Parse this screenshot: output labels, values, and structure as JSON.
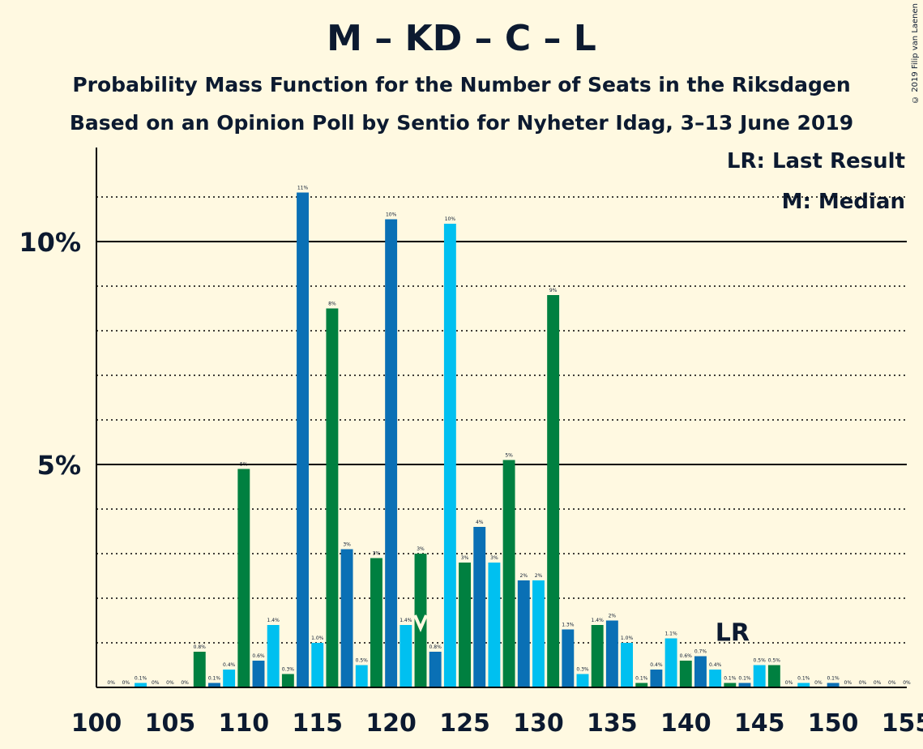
{
  "title": "M – KD – C – L",
  "subtitle1": "Probability Mass Function for the Number of Seats in the Riksdagen",
  "subtitle2": "Based on an Opinion Poll by Sentio for Nyheter Idag, 3–13 June 2019",
  "copyright": "© 2019 Filip van Laenen",
  "legend": {
    "last_result": "LR: Last Result",
    "median": "M: Median"
  },
  "colors": {
    "background": "#fff9e1",
    "bar_palette": [
      "#0a70b5",
      "#00c0f0",
      "#008040",
      "#0a70b5",
      "#00c0f0",
      "#008040"
    ],
    "text": "#0c1a30"
  },
  "chart_data": {
    "type": "bar",
    "xlabel": "",
    "ylabel": "",
    "xlim": [
      100,
      155
    ],
    "ylim": [
      0,
      12
    ],
    "x_ticks": [
      "100",
      "105",
      "110",
      "115",
      "120",
      "125",
      "130",
      "135",
      "140",
      "145",
      "150",
      "155"
    ],
    "y_ticks": [
      "5%",
      "10%"
    ],
    "grid": "dotted every 1%, solid at 5% and 10%",
    "median_seat": 122,
    "last_result_seat": 143,
    "last_result_label": "LR",
    "seats": [
      101,
      102,
      103,
      104,
      105,
      106,
      107,
      108,
      109,
      110,
      111,
      112,
      113,
      114,
      115,
      116,
      117,
      118,
      119,
      120,
      121,
      122,
      123,
      124,
      125,
      126,
      127,
      128,
      129,
      130,
      131,
      132,
      133,
      134,
      135,
      136,
      137,
      138,
      139,
      140,
      141,
      142,
      143,
      144,
      145,
      146,
      147,
      148,
      149,
      150,
      151,
      152,
      153,
      154,
      155
    ],
    "values": [
      0.0,
      0.0,
      0.1,
      0.0,
      0.0,
      0.0,
      0.8,
      0.1,
      0.4,
      4.9,
      0.6,
      1.4,
      0.3,
      11.1,
      1.0,
      8.5,
      3.1,
      0.5,
      2.9,
      10.5,
      1.4,
      3.0,
      0.8,
      10.4,
      2.8,
      3.6,
      2.8,
      5.1,
      2.4,
      2.4,
      8.8,
      1.3,
      0.3,
      1.4,
      1.5,
      1.0,
      0.1,
      0.4,
      1.1,
      0.6,
      0.7,
      0.4,
      0.1,
      0.1,
      0.5,
      0.5,
      0.0,
      0.1,
      0.0,
      0.1,
      0.0,
      0.0,
      0.0,
      0.0,
      0.0
    ],
    "labels": [
      "0%",
      "0%",
      "0.1%",
      "0%",
      "0%",
      "0%",
      "0.8%",
      "0.1%",
      "0.4%",
      "5%",
      "0.6%",
      "1.4%",
      "0.3%",
      "11%",
      "1.0%",
      "8%",
      "3%",
      "0.5%",
      "3%",
      "10%",
      "1.4%",
      "3%",
      "0.8%",
      "10%",
      "3%",
      "4%",
      "3%",
      "5%",
      "2%",
      "2%",
      "9%",
      "1.3%",
      "0.3%",
      "1.4%",
      "2%",
      "1.0%",
      "0.1%",
      "0.4%",
      "1.1%",
      "0.6%",
      "0.7%",
      "0.4%",
      "0.1%",
      "0.1%",
      "0.5%",
      "0.5%",
      "0%",
      "0.1%",
      "0%",
      "0.1%",
      "0%",
      "0%",
      "0%",
      "0%",
      "0%"
    ]
  }
}
